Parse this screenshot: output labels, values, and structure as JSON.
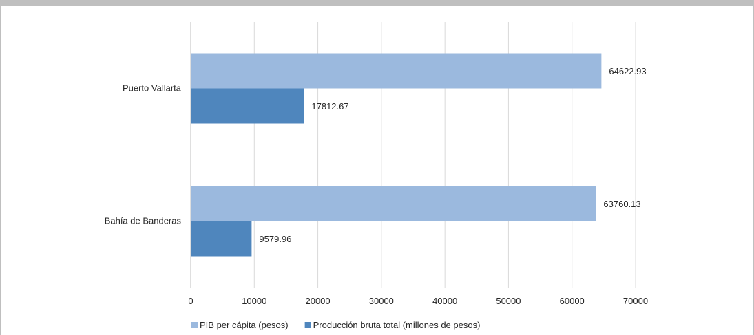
{
  "chart_data": {
    "type": "bar",
    "orientation": "horizontal",
    "title": "",
    "xlabel": "",
    "ylabel": "",
    "categories": [
      "Puerto Vallarta",
      "Bahía de Banderas"
    ],
    "series": [
      {
        "name": "PIB per cápita (pesos)",
        "color": "#9bb9de",
        "values": [
          64622.93,
          63760.13
        ],
        "labels": [
          "64622.93",
          "63760.13"
        ]
      },
      {
        "name": "Producción bruta total (millones de pesos)",
        "color": "#4f86bd",
        "values": [
          17812.67,
          9579.96
        ],
        "labels": [
          "17812.67",
          "9579.96"
        ]
      }
    ],
    "xlim": [
      0,
      70000
    ],
    "xticks": [
      "0",
      "10000",
      "20000",
      "30000",
      "40000",
      "50000",
      "60000",
      "70000"
    ],
    "grid": true,
    "legend_position": "bottom"
  }
}
